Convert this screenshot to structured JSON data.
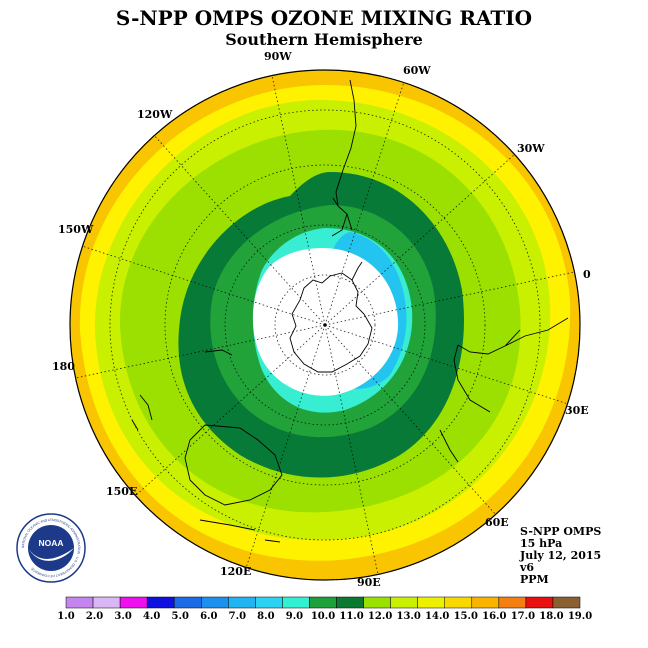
{
  "header": {
    "title": "S-NPP OMPS OZONE MIXING RATIO",
    "subtitle": "Southern Hemisphere"
  },
  "map": {
    "projection": "south-polar-stereographic",
    "longitude_labels": [
      "90W",
      "60W",
      "30W",
      "0",
      "30E",
      "60E",
      "90E",
      "120E",
      "150E",
      "180",
      "150W",
      "120W"
    ],
    "color_levels": [
      {
        "label": "14-19",
        "color": "#f9c400"
      },
      {
        "label": "13-14",
        "color": "#fef200"
      },
      {
        "label": "12-13",
        "color": "#c8f000"
      },
      {
        "label": "11-12",
        "color": "#9be000"
      },
      {
        "label": "10-11",
        "color": "#077a38"
      },
      {
        "label": "9-10",
        "color": "#21a33a"
      },
      {
        "label": "8-9",
        "color": "#37edd2"
      },
      {
        "label": "7-8",
        "color": "#24c4f0"
      },
      {
        "label": "low",
        "color": "#ffffff"
      }
    ]
  },
  "info": {
    "lines": [
      "S-NPP OMPS",
      "15 hPa",
      "July 12, 2015",
      "v6",
      "PPM"
    ]
  },
  "logo": {
    "name": "NOAA",
    "ring_text": "NATIONAL OCEANIC AND ATMOSPHERIC ADMINISTRATION · U.S. DEPARTMENT OF COMMERCE"
  },
  "colorbar": {
    "labels": [
      "1.0",
      "2.0",
      "3.0",
      "4.0",
      "5.0",
      "6.0",
      "7.0",
      "8.0",
      "9.0",
      "10.0",
      "11.0",
      "12.0",
      "13.0",
      "14.0",
      "15.0",
      "16.0",
      "17.0",
      "18.0",
      "19.0"
    ],
    "colors": [
      "#c485ee",
      "#d9b6f4",
      "#ee10ee",
      "#1010e0",
      "#1c6ae6",
      "#1c90ee",
      "#20b4f2",
      "#2cd2f2",
      "#34f0d2",
      "#1ea03a",
      "#0a7a30",
      "#9ae000",
      "#c8f000",
      "#eef000",
      "#f9d800",
      "#f9b400",
      "#f47e10",
      "#e81010",
      "#8a6030"
    ]
  }
}
